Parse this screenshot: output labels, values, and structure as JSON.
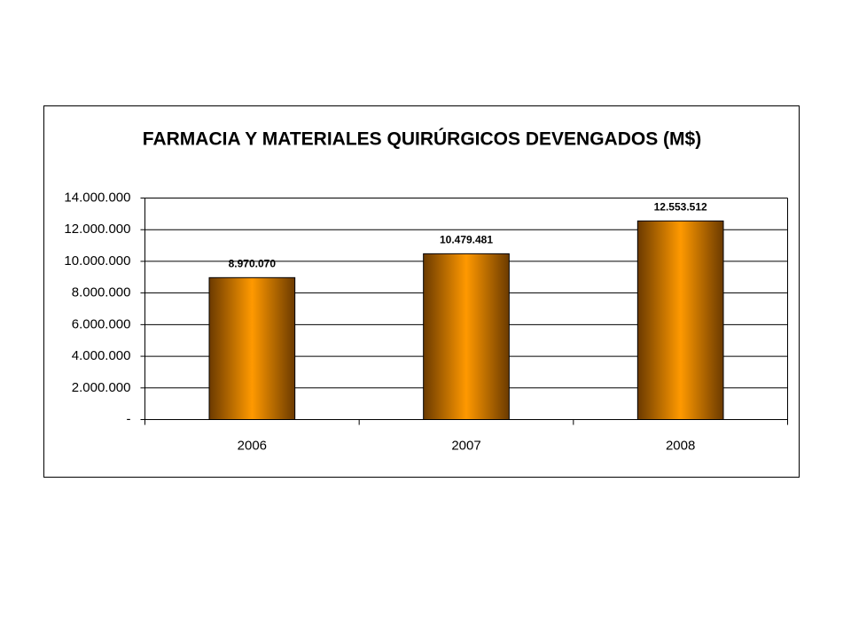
{
  "chart_data": {
    "type": "bar",
    "title": "FARMACIA Y MATERIALES QUIRÚRGICOS DEVENGADOS (M$)",
    "categories": [
      "2006",
      "2007",
      "2008"
    ],
    "values": [
      8970070,
      10479481,
      12553512
    ],
    "value_labels": [
      "8.970.070",
      "10.479.481",
      "12.553.512"
    ],
    "color": "#ff9900",
    "ylim": [
      0,
      14000000
    ],
    "yticks": [
      {
        "value": 0,
        "label": "-"
      },
      {
        "value": 2000000,
        "label": "2.000.000"
      },
      {
        "value": 4000000,
        "label": "4.000.000"
      },
      {
        "value": 6000000,
        "label": "6.000.000"
      },
      {
        "value": 8000000,
        "label": "8.000.000"
      },
      {
        "value": 10000000,
        "label": "10.000.000"
      },
      {
        "value": 12000000,
        "label": "12.000.000"
      },
      {
        "value": 14000000,
        "label": "14.000.000"
      }
    ],
    "grid": true
  }
}
